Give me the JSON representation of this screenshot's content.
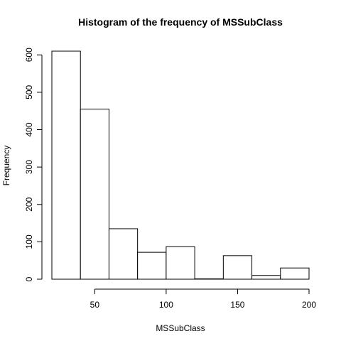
{
  "chart_data": {
    "type": "bar",
    "title": "Histogram of the frequency of MSSubClass",
    "xlabel": "MSSubClass",
    "ylabel": "Frequency",
    "bins": [
      {
        "from": 20,
        "to": 40,
        "value": 610
      },
      {
        "from": 40,
        "to": 60,
        "value": 455
      },
      {
        "from": 60,
        "to": 80,
        "value": 135
      },
      {
        "from": 80,
        "to": 100,
        "value": 72
      },
      {
        "from": 100,
        "to": 120,
        "value": 87
      },
      {
        "from": 120,
        "to": 140,
        "value": 1
      },
      {
        "from": 140,
        "to": 160,
        "value": 63
      },
      {
        "from": 160,
        "to": 180,
        "value": 10
      },
      {
        "from": 180,
        "to": 200,
        "value": 30
      }
    ],
    "xlim": [
      20,
      200
    ],
    "ylim": [
      0,
      610
    ],
    "x_ticks": [
      50,
      100,
      150,
      200
    ],
    "y_ticks": [
      0,
      100,
      200,
      300,
      400,
      500,
      600
    ],
    "bar_fill": "#ffffff",
    "bar_stroke": "#000000",
    "grid": false
  }
}
